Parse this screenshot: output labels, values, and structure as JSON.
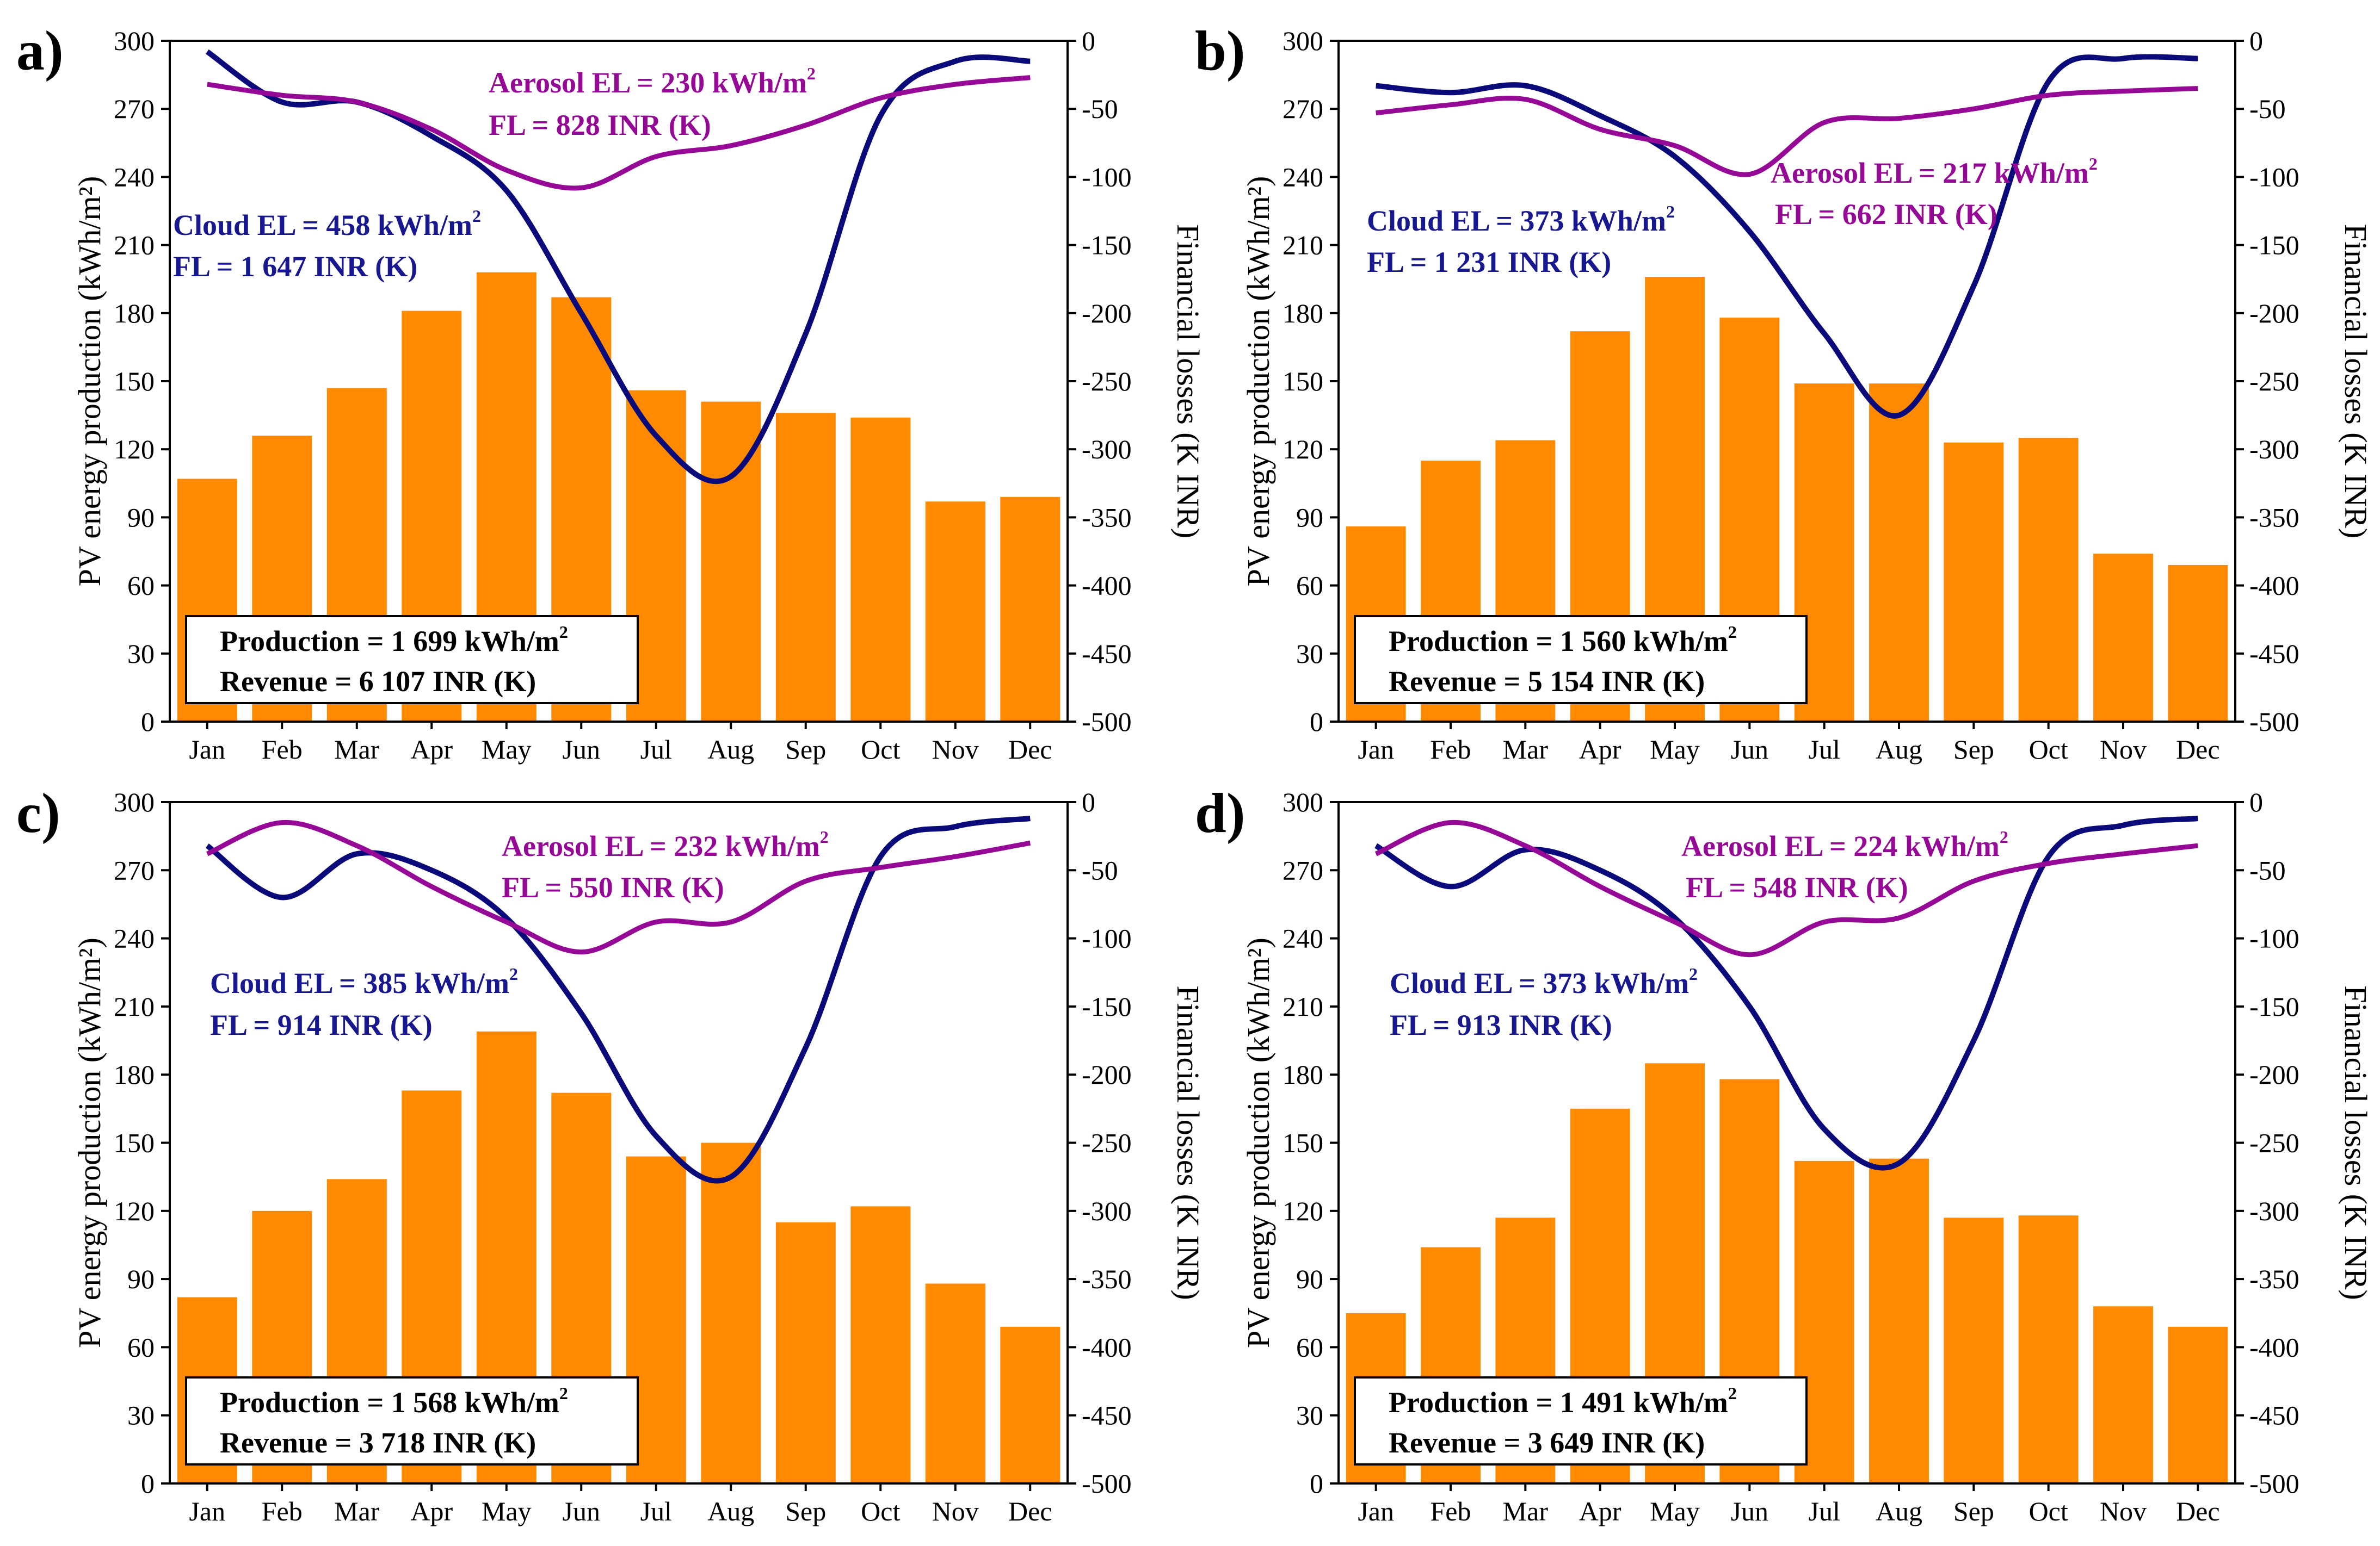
{
  "figure": {
    "colors": {
      "bar": "#ff8a00",
      "cloud": "#0a0a7a",
      "aerosol": "#960896",
      "axis": "#000000"
    },
    "left_axis_title": "PV energy production (kWh/m²)",
    "right_axis_title": "Financial losses (K INR)"
  },
  "chart_data": [
    {
      "panel": "a)",
      "type": "bar",
      "categories": [
        "Jan",
        "Feb",
        "Mar",
        "Apr",
        "May",
        "Jun",
        "Jul",
        "Aug",
        "Sep",
        "Oct",
        "Nov",
        "Dec"
      ],
      "values": [
        107,
        126,
        147,
        181,
        198,
        187,
        146,
        141,
        136,
        134,
        97,
        99
      ],
      "y_left": {
        "label": "PV energy production (kWh/m²)",
        "range": [
          0,
          300
        ],
        "ticks": [
          "0",
          "30",
          "60",
          "90",
          "120",
          "150",
          "180",
          "210",
          "240",
          "270",
          "300"
        ]
      },
      "y_right": {
        "label": "Financial losses (K INR)",
        "range": [
          -500,
          0
        ],
        "ticks": [
          "-500",
          "-450",
          "-400",
          "-350",
          "-300",
          "-250",
          "-200",
          "-150",
          "-100",
          "-50",
          "0"
        ]
      },
      "lines": [
        {
          "name": "Cloud",
          "axis": "right",
          "values": [
            -8,
            -45,
            -45,
            -70,
            -110,
            -200,
            -290,
            -320,
            -215,
            -55,
            -15,
            -15
          ]
        },
        {
          "name": "Aerosol",
          "axis": "right",
          "values": [
            -32,
            -40,
            -45,
            -65,
            -95,
            -108,
            -85,
            -77,
            -62,
            -42,
            -32,
            -27
          ]
        }
      ],
      "annotations": {
        "aerosol_el": "Aerosol EL = 230 kWh/m",
        "aerosol_fl": "FL = 828 INR (K)",
        "cloud_el": "Cloud EL = 458 kWh/m",
        "cloud_fl": "FL = 1 647 INR (K)",
        "production": "Production = 1 699 kWh/m",
        "revenue": "Revenue = 6 107 INR (K)",
        "sup": "2"
      }
    },
    {
      "panel": "b)",
      "type": "bar",
      "categories": [
        "Jan",
        "Feb",
        "Mar",
        "Apr",
        "May",
        "Jun",
        "Jul",
        "Aug",
        "Sep",
        "Oct",
        "Nov",
        "Dec"
      ],
      "values": [
        86,
        115,
        124,
        172,
        196,
        178,
        149,
        149,
        123,
        125,
        74,
        69
      ],
      "y_left": {
        "label": "PV energy production (kWh/m²)",
        "range": [
          0,
          300
        ],
        "ticks": [
          "0",
          "30",
          "60",
          "90",
          "120",
          "150",
          "180",
          "210",
          "240",
          "270",
          "300"
        ]
      },
      "y_right": {
        "label": "Financial losses (K INR)",
        "range": [
          -500,
          0
        ],
        "ticks": [
          "-500",
          "-450",
          "-400",
          "-350",
          "-300",
          "-250",
          "-200",
          "-150",
          "-100",
          "-50",
          "0"
        ]
      },
      "lines": [
        {
          "name": "Cloud",
          "axis": "right",
          "values": [
            -33,
            -38,
            -33,
            -55,
            -85,
            -140,
            -215,
            -275,
            -180,
            -30,
            -13,
            -13
          ]
        },
        {
          "name": "Aerosol",
          "axis": "right",
          "values": [
            -53,
            -47,
            -43,
            -65,
            -77,
            -98,
            -60,
            -57,
            -50,
            -40,
            -37,
            -35
          ]
        }
      ],
      "annotations": {
        "aerosol_el": "Aerosol EL = 217 kWh/m",
        "aerosol_fl": "FL = 662 INR (K)",
        "cloud_el": "Cloud EL = 373 kWh/m",
        "cloud_fl": "FL = 1 231 INR (K)",
        "production": "Production = 1 560 kWh/m",
        "revenue": "Revenue = 5 154 INR (K)",
        "sup": "2"
      }
    },
    {
      "panel": "c)",
      "type": "bar",
      "categories": [
        "Jan",
        "Feb",
        "Mar",
        "Apr",
        "May",
        "Jun",
        "Jul",
        "Aug",
        "Sep",
        "Oct",
        "Nov",
        "Dec"
      ],
      "values": [
        82,
        120,
        134,
        173,
        199,
        172,
        144,
        150,
        115,
        122,
        88,
        69
      ],
      "y_left": {
        "label": "PV energy production (kWh/m²)",
        "range": [
          0,
          300
        ],
        "ticks": [
          "0",
          "30",
          "60",
          "90",
          "120",
          "150",
          "180",
          "210",
          "240",
          "270",
          "300"
        ]
      },
      "y_right": {
        "label": "Financial losses (K INR)",
        "range": [
          -500,
          0
        ],
        "ticks": [
          "-500",
          "-450",
          "-400",
          "-350",
          "-300",
          "-250",
          "-200",
          "-150",
          "-100",
          "-50",
          "0"
        ]
      },
      "lines": [
        {
          "name": "Cloud",
          "axis": "right",
          "values": [
            -32,
            -70,
            -38,
            -50,
            -85,
            -155,
            -245,
            -275,
            -180,
            -40,
            -18,
            -12
          ]
        },
        {
          "name": "Aerosol",
          "axis": "right",
          "values": [
            -38,
            -15,
            -32,
            -62,
            -88,
            -110,
            -88,
            -88,
            -58,
            -48,
            -40,
            -30
          ]
        }
      ],
      "annotations": {
        "aerosol_el": "Aerosol EL = 232 kWh/m",
        "aerosol_fl": "FL = 550 INR (K)",
        "cloud_el": "Cloud EL = 385 kWh/m",
        "cloud_fl": "FL = 914 INR (K)",
        "production": "Production = 1 568 kWh/m",
        "revenue": "Revenue = 3 718 INR (K)",
        "sup": "2"
      }
    },
    {
      "panel": "d)",
      "type": "bar",
      "categories": [
        "Jan",
        "Feb",
        "Mar",
        "Apr",
        "May",
        "Jun",
        "Jul",
        "Aug",
        "Sep",
        "Oct",
        "Nov",
        "Dec"
      ],
      "values": [
        75,
        104,
        117,
        165,
        185,
        178,
        142,
        143,
        117,
        118,
        78,
        69
      ],
      "y_left": {
        "label": "PV energy production (kWh/m²)",
        "range": [
          0,
          300
        ],
        "ticks": [
          "0",
          "30",
          "60",
          "90",
          "120",
          "150",
          "180",
          "210",
          "240",
          "270",
          "300"
        ]
      },
      "y_right": {
        "label": "Financial losses (K INR)",
        "range": [
          -500,
          0
        ],
        "ticks": [
          "-500",
          "-450",
          "-400",
          "-350",
          "-300",
          "-250",
          "-200",
          "-150",
          "-100",
          "-50",
          "0"
        ]
      },
      "lines": [
        {
          "name": "Cloud",
          "axis": "right",
          "values": [
            -32,
            -62,
            -35,
            -50,
            -85,
            -150,
            -240,
            -265,
            -175,
            -40,
            -17,
            -12
          ]
        },
        {
          "name": "Aerosol",
          "axis": "right",
          "values": [
            -38,
            -15,
            -32,
            -62,
            -88,
            -112,
            -88,
            -85,
            -58,
            -45,
            -38,
            -32
          ]
        }
      ],
      "annotations": {
        "aerosol_el": "Aerosol EL = 224 kWh/m",
        "aerosol_fl": "FL = 548 INR (K)",
        "cloud_el": "Cloud EL = 373 kWh/m",
        "cloud_fl": "FL = 913 INR (K)",
        "production": "Production = 1 491 kWh/m",
        "revenue": "Revenue = 3 649 INR (K)",
        "sup": "2"
      }
    }
  ]
}
